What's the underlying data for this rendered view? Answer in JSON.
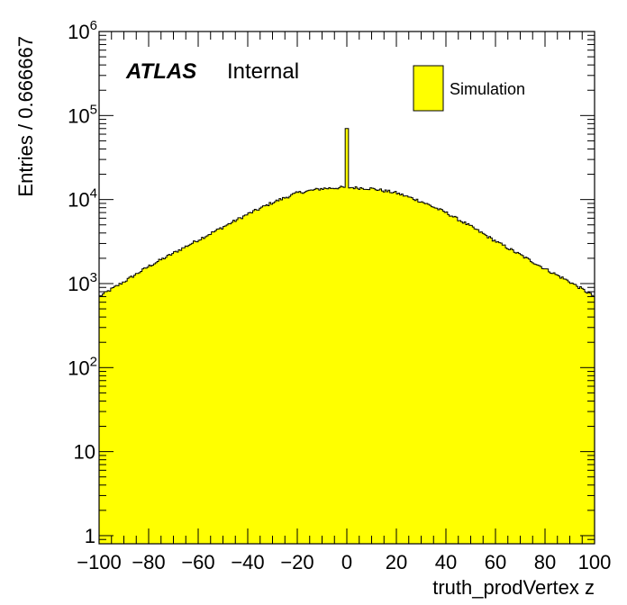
{
  "chart_data": {
    "type": "histogram",
    "xlabel": "truth_prodVertex z",
    "ylabel": "Entries / 0.666667",
    "xlim": [
      -100,
      100
    ],
    "ylim": [
      0.8,
      1000000
    ],
    "yscale": "log",
    "grid": false,
    "experiment_label": "ATLAS",
    "status_label": "Internal",
    "legend": {
      "placement": "top-right",
      "entries": [
        "Simulation"
      ]
    },
    "fill_color": "#ffff00",
    "line_color": "#000000",
    "bin_width": 0.666667,
    "x_ticks": [
      "−100",
      "−80",
      "−60",
      "−40",
      "−20",
      "0",
      "20",
      "40",
      "60",
      "80",
      "100"
    ],
    "x_tick_values": [
      -100,
      -80,
      -60,
      -40,
      -20,
      0,
      20,
      40,
      60,
      80,
      100
    ],
    "y_ticks": [
      {
        "value": 1,
        "base": "1",
        "exp": ""
      },
      {
        "value": 10,
        "base": "10",
        "exp": ""
      },
      {
        "value": 100,
        "base": "10",
        "exp": "2"
      },
      {
        "value": 1000,
        "base": "10",
        "exp": "3"
      },
      {
        "value": 10000,
        "base": "10",
        "exp": "4"
      },
      {
        "value": 100000,
        "base": "10",
        "exp": "5"
      },
      {
        "value": 1000000,
        "base": "10",
        "exp": "6"
      }
    ],
    "series": [
      {
        "name": "Simulation",
        "envelope": {
          "x": [
            -100,
            -90,
            -80,
            -70,
            -60,
            -50,
            -40,
            -30,
            -20,
            -10,
            0,
            10,
            20,
            30,
            40,
            50,
            60,
            70,
            80,
            90,
            100
          ],
          "y": [
            700,
            1050,
            1600,
            2300,
            3300,
            4700,
            6700,
            9200,
            12000,
            13500,
            14000,
            13500,
            12000,
            9500,
            7000,
            4800,
            3200,
            2200,
            1500,
            1050,
            700
          ]
        },
        "spikes": [
          {
            "x": 0,
            "y": 70000
          },
          {
            "x": 80,
            "y": 1150
          }
        ]
      }
    ]
  }
}
